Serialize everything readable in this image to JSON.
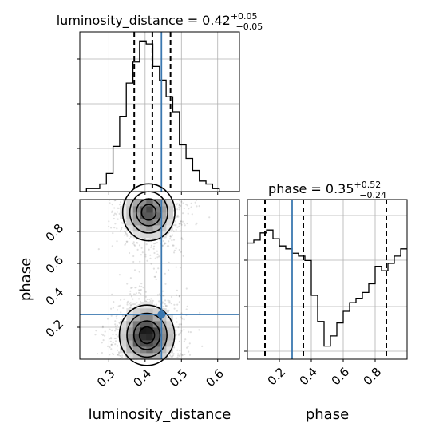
{
  "chart_data": {
    "type": "corner",
    "parameters": [
      "luminosity_distance",
      "phase"
    ],
    "truth": {
      "luminosity_distance": 0.445,
      "phase": 0.28
    },
    "truth_color": "#3b78b0",
    "panels": [
      {
        "id": "lumdist-marginal",
        "type": "histogram",
        "title": {
          "prefix": "luminosity_distance = 0.42",
          "plus": "+0.05",
          "minus": "−0.05"
        },
        "xlim": [
          0.22,
          0.66
        ],
        "ymax": 1.0,
        "bins": {
          "start": 0.22,
          "width": 0.0183,
          "values": [
            0.0,
            0.02,
            0.02,
            0.05,
            0.12,
            0.3,
            0.5,
            0.72,
            0.86,
            1.0,
            0.98,
            0.83,
            0.74,
            0.63,
            0.53,
            0.31,
            0.22,
            0.14,
            0.07,
            0.05,
            0.02,
            0.0,
            0.0,
            0.0
          ]
        },
        "quantiles": [
          0.37,
          0.42,
          0.47
        ]
      },
      {
        "id": "phase-marginal",
        "type": "histogram",
        "title": {
          "prefix": "phase = 0.35",
          "plus": "+0.52",
          "minus": "−0.24"
        },
        "xlim": [
          0.0,
          1.0
        ],
        "ymax": 1.0,
        "bins": {
          "start": 0.0,
          "width": 0.04,
          "values": [
            0.8,
            0.82,
            0.87,
            0.89,
            0.83,
            0.78,
            0.76,
            0.73,
            0.71,
            0.68,
            0.44,
            0.26,
            0.09,
            0.16,
            0.25,
            0.33,
            0.39,
            0.42,
            0.46,
            0.52,
            0.64,
            0.61,
            0.66,
            0.71,
            0.76
          ]
        },
        "quantiles": [
          0.11,
          0.35,
          0.87
        ]
      },
      {
        "id": "joint-density",
        "type": "2d-histogram-contour",
        "xlim": [
          0.22,
          0.66
        ],
        "ylim": [
          0.0,
          1.0
        ],
        "xticks": [
          0.3,
          0.4,
          0.5,
          0.6
        ],
        "yticks": [
          0.2,
          0.4,
          0.6,
          0.8
        ],
        "modes": [
          {
            "x": 0.405,
            "y": 0.15,
            "sx": 0.038,
            "sy": 0.09,
            "weight": 1.0
          },
          {
            "x": 0.41,
            "y": 0.92,
            "sx": 0.036,
            "sy": 0.085,
            "weight": 0.75
          }
        ]
      }
    ],
    "xlabels": [
      "luminosity_distance",
      "phase"
    ],
    "ylabel": "phase",
    "phase_xticks": [
      0.2,
      0.4,
      0.6,
      0.8
    ]
  }
}
